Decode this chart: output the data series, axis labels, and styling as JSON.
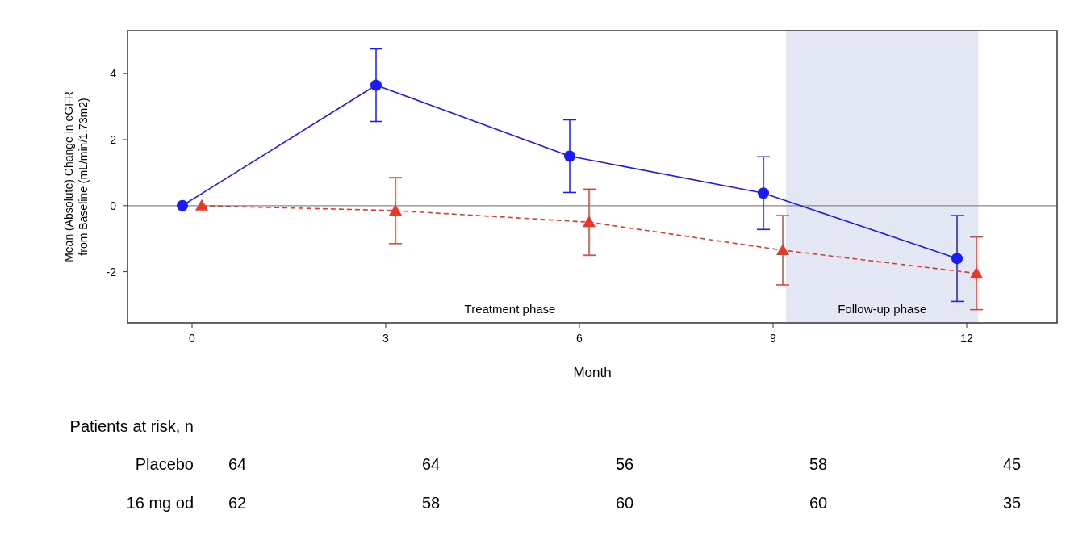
{
  "chart_data": {
    "type": "line",
    "xlabel": "Month",
    "ylabel": "Mean (Absolute) Change in eGFR\nfrom Baseline (mL/min/1.73m2)",
    "xlim": [
      -1,
      13.4
    ],
    "ylim": [
      -3.55,
      5.3
    ],
    "xticks": [
      0,
      3,
      6,
      9,
      12
    ],
    "yticks": [
      -2,
      0,
      2,
      4
    ],
    "series": [
      {
        "color": "#1a1aff",
        "marker": "circle",
        "line_style": "solid",
        "x": [
          -0.15,
          2.85,
          5.85,
          8.85,
          11.85
        ],
        "values": [
          0,
          3.65,
          1.5,
          0.38,
          -1.6
        ],
        "errors": [
          null,
          1.1,
          1.1,
          1.1,
          1.3
        ]
      },
      {
        "color": "#e8382a",
        "marker": "triangle",
        "line_style": "dashed",
        "x": [
          0.15,
          3.15,
          6.15,
          9.15,
          12.15
        ],
        "values": [
          0,
          -0.15,
          -0.5,
          -1.35,
          -2.05
        ],
        "errors": [
          null,
          1.0,
          1.0,
          1.05,
          1.1
        ]
      }
    ],
    "ref_lines": [
      {
        "axis": "y",
        "value": 0,
        "color": "#888888"
      }
    ],
    "bands": [
      {
        "axis": "x",
        "from": 9.2,
        "to": 12.18,
        "label": "Follow-up phase",
        "color": "#e4e8f4"
      }
    ],
    "annotations": [
      "Treatment phase",
      "Patients at risk, n",
      "Placebo",
      "64",
      "64",
      "56",
      "58",
      "45",
      "16 mg od",
      "62",
      "58",
      "60",
      "60",
      "35"
    ]
  }
}
